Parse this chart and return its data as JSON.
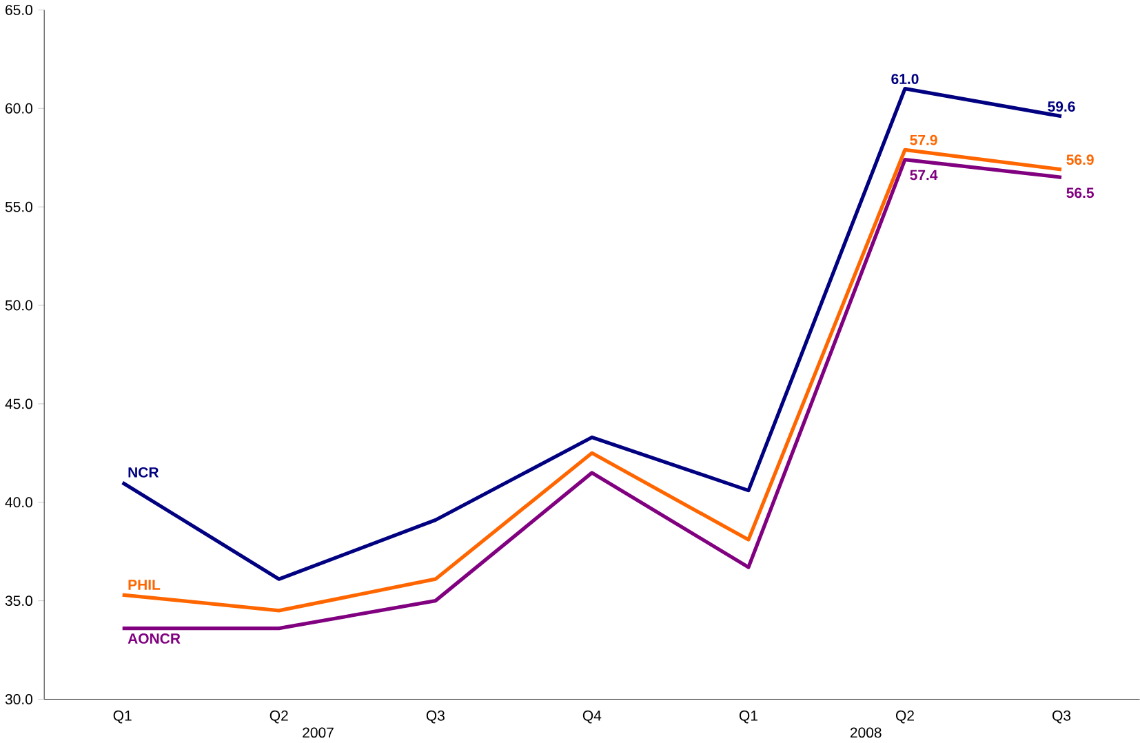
{
  "chart_data": {
    "type": "line",
    "categories": [
      "Q1",
      "Q2",
      "Q3",
      "Q4",
      "Q1",
      "Q2",
      "Q3"
    ],
    "series": [
      {
        "name": "NCR",
        "color": "#000080",
        "values": [
          41.0,
          36.1,
          39.1,
          43.3,
          40.6,
          61.0,
          59.6
        ],
        "value_labels": [
          null,
          null,
          null,
          null,
          null,
          "61.0",
          "59.6"
        ]
      },
      {
        "name": "PHIL",
        "color": "#ff6600",
        "values": [
          35.3,
          34.5,
          36.1,
          42.5,
          38.1,
          57.9,
          56.9
        ],
        "value_labels": [
          null,
          null,
          null,
          null,
          null,
          "57.9",
          "56.9"
        ]
      },
      {
        "name": "AONCR",
        "color": "#800080",
        "values": [
          33.6,
          33.6,
          35.0,
          41.5,
          36.7,
          57.4,
          56.5
        ],
        "value_labels": [
          null,
          null,
          null,
          null,
          null,
          "57.4",
          "56.5"
        ]
      }
    ],
    "ylim": [
      30,
      65
    ],
    "yticks": [
      {
        "value": 30,
        "label": "30.0"
      },
      {
        "value": 35,
        "label": "35.0"
      },
      {
        "value": 40,
        "label": "40.0"
      },
      {
        "value": 45,
        "label": "45.0"
      },
      {
        "value": 50,
        "label": "50.0"
      },
      {
        "value": 55,
        "label": "55.0"
      },
      {
        "value": 60,
        "label": "60.0"
      },
      {
        "value": 65,
        "label": "65.0"
      }
    ],
    "annotations": [
      "2007",
      "2008"
    ],
    "grid": false,
    "marker": "none",
    "line_style": "solid"
  }
}
